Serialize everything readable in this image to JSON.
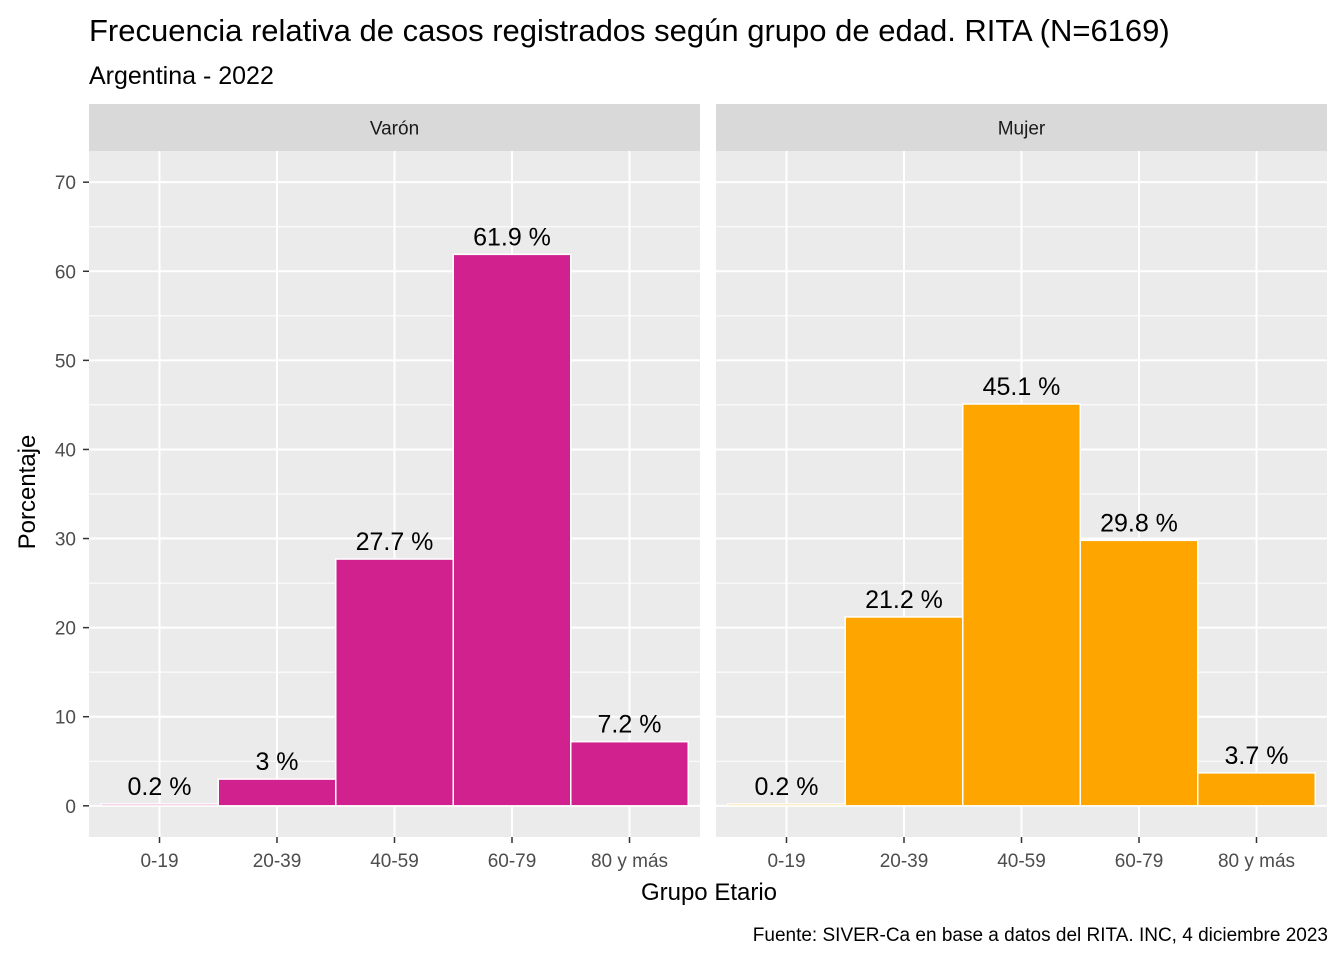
{
  "chart_data": {
    "type": "bar",
    "title": "Frecuencia relativa de casos registrados según grupo de edad. RITA (N=6169)",
    "subtitle": "Argentina - 2022",
    "xlabel": "Grupo Etario",
    "ylabel": "Porcentaje",
    "caption": "Fuente: SIVER-Ca en base a datos del RITA. INC, 4 diciembre 2023",
    "categories": [
      "0-19",
      "20-39",
      "40-59",
      "60-79",
      "80 y más"
    ],
    "ylim": [
      -3.5,
      73.5
    ],
    "yticks": [
      0,
      10,
      20,
      30,
      40,
      50,
      60,
      70
    ],
    "grid": true,
    "legend": "none",
    "panels": [
      {
        "name": "Varón",
        "color": "#D0218F",
        "values": [
          0.2,
          3,
          27.7,
          61.9,
          7.2
        ],
        "labels": [
          "0.2 %",
          "3 %",
          "27.7 %",
          "61.9 %",
          "7.2 %"
        ]
      },
      {
        "name": "Mujer",
        "color": "#FFA500",
        "values": [
          0.2,
          21.2,
          45.1,
          29.8,
          3.7
        ],
        "labels": [
          "0.2 %",
          "21.2 %",
          "45.1 %",
          "29.8 %",
          "3.7 %"
        ]
      }
    ]
  }
}
